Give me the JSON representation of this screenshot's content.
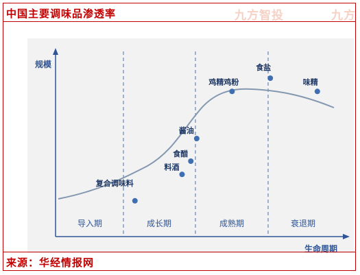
{
  "header": {
    "title": "中国主要调味品渗透率",
    "watermark_left": "九方智投",
    "watermark_right": "九方"
  },
  "footer": {
    "source": "来源：华经情报网"
  },
  "colors": {
    "accent": "#c00000",
    "curve": "#8497b0",
    "point": "#3f6fb0",
    "panel": "#f2f2f2",
    "axis": "#2f5597"
  },
  "chart_data": {
    "type": "line",
    "title": "",
    "ylabel": "规模",
    "xlabel": "生命周期",
    "stages": [
      "导入期",
      "成长期",
      "成熟期",
      "衰退期"
    ],
    "series": [
      {
        "points": [
          {
            "label": "复合调味料",
            "x": 0.27,
            "y": 0.19
          },
          {
            "label": "料酒",
            "x": 0.43,
            "y": 0.33
          },
          {
            "label": "食醋",
            "x": 0.46,
            "y": 0.4
          },
          {
            "label": "酱油",
            "x": 0.48,
            "y": 0.52
          },
          {
            "label": "鸡精鸡粉",
            "x": 0.6,
            "y": 0.77
          },
          {
            "label": "食盐",
            "x": 0.73,
            "y": 0.84
          },
          {
            "label": "味精",
            "x": 0.89,
            "y": 0.77
          }
        ]
      }
    ]
  }
}
